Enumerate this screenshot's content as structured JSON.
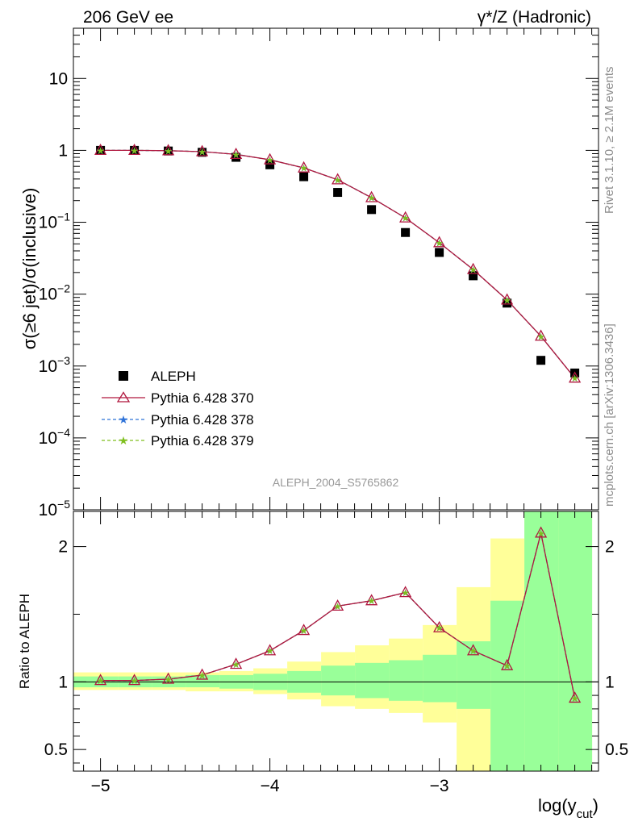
{
  "header": {
    "left": "206 GeV ee",
    "right": "γ*/Z (Hadronic)"
  },
  "side_labels": {
    "rivet": "Rivet 3.1.10, ≥ 2.1M events",
    "mcplots": "mcplots.cern.ch [arXiv:1306.3436]"
  },
  "analysis_id": "ALEPH_2004_S5765862",
  "colors": {
    "data": "#000000",
    "p370": "#b0173e",
    "p378": "#2f73d8",
    "p379": "#7fbf1f",
    "band_yellow": "#ffff99",
    "band_green": "#99ff99"
  },
  "chart_data": [
    {
      "type": "line",
      "panel": "main",
      "ylabel": "σ(≥6 jet)/σ(inclusive)",
      "xlabel": "log(y_cut)",
      "yscale": "log",
      "ylim": [
        1e-05,
        50
      ],
      "xlim": [
        -5.16,
        -2.06
      ],
      "ytick_labels": [
        "10",
        "1",
        "10^-1",
        "10^-2",
        "10^-3",
        "10^-4",
        "10^-5"
      ],
      "x": [
        -5.0,
        -4.8,
        -4.6,
        -4.4,
        -4.2,
        -4.0,
        -3.8,
        -3.6,
        -3.4,
        -3.2,
        -3.0,
        -2.8,
        -2.6,
        -2.4,
        -2.2
      ],
      "series": [
        {
          "name": "ALEPH",
          "values": [
            1.0,
            1.0,
            0.98,
            0.94,
            0.8,
            0.63,
            0.43,
            0.26,
            0.15,
            0.072,
            0.038,
            0.018,
            0.0075,
            0.0012,
            0.0008
          ]
        },
        {
          "name": "Pythia 6.428 370",
          "values": [
            1.0,
            1.0,
            0.99,
            0.96,
            0.88,
            0.74,
            0.57,
            0.39,
            0.22,
            0.115,
            0.052,
            0.022,
            0.0083,
            0.0026,
            0.00068
          ]
        },
        {
          "name": "Pythia 6.428 378",
          "values": [
            1.0,
            1.0,
            0.99,
            0.96,
            0.88,
            0.74,
            0.57,
            0.39,
            0.22,
            0.115,
            0.052,
            0.022,
            0.0083,
            0.0026,
            0.00068
          ]
        },
        {
          "name": "Pythia 6.428 379",
          "values": [
            1.0,
            1.0,
            0.99,
            0.96,
            0.88,
            0.74,
            0.57,
            0.39,
            0.22,
            0.115,
            0.052,
            0.022,
            0.0083,
            0.0026,
            0.00068
          ]
        }
      ],
      "legend_position": "lower-left"
    },
    {
      "type": "line",
      "panel": "ratio",
      "ylabel": "Ratio to ALEPH",
      "xlabel": "log(y_cut)",
      "ylim": [
        0.34,
        2.26
      ],
      "xlim": [
        -5.16,
        -2.06
      ],
      "xtick_labels": [
        "−5",
        "−4",
        "−3"
      ],
      "ytick_labels": [
        "0.5",
        "1",
        "2"
      ],
      "x": [
        -5.0,
        -4.8,
        -4.6,
        -4.4,
        -4.2,
        -4.0,
        -3.8,
        -3.6,
        -3.4,
        -3.2,
        -3.0,
        -2.8,
        -2.6,
        -2.4,
        -2.2
      ],
      "series": [
        {
          "name": "Pythia 6.428 370",
          "values": [
            1.01,
            1.01,
            1.02,
            1.05,
            1.13,
            1.23,
            1.38,
            1.56,
            1.6,
            1.66,
            1.4,
            1.23,
            1.12,
            2.1,
            0.88
          ]
        },
        {
          "name": "Pythia 6.428 378",
          "values": [
            1.01,
            1.01,
            1.02,
            1.05,
            1.13,
            1.23,
            1.38,
            1.56,
            1.6,
            1.66,
            1.4,
            1.23,
            1.12,
            2.1,
            0.88
          ]
        },
        {
          "name": "Pythia 6.428 379",
          "values": [
            1.01,
            1.01,
            1.02,
            1.05,
            1.13,
            1.23,
            1.38,
            1.56,
            1.6,
            1.66,
            1.4,
            1.23,
            1.12,
            2.1,
            0.88
          ]
        }
      ],
      "band_edges": [
        -5.2,
        -4.9,
        -4.7,
        -4.5,
        -4.3,
        -4.1,
        -3.9,
        -3.7,
        -3.5,
        -3.3,
        -3.1,
        -2.9,
        -2.7,
        -2.5,
        -2.3,
        -2.1
      ],
      "band_yellow": [
        [
          0.94,
          1.07
        ],
        [
          0.94,
          1.07
        ],
        [
          0.94,
          1.07
        ],
        [
          0.93,
          1.07
        ],
        [
          0.93,
          1.08
        ],
        [
          0.91,
          1.1
        ],
        [
          0.87,
          1.15
        ],
        [
          0.82,
          1.22
        ],
        [
          0.8,
          1.27
        ],
        [
          0.77,
          1.32
        ],
        [
          0.7,
          1.42
        ],
        [
          0.34,
          1.7
        ],
        [
          0.46,
          2.06
        ],
        [
          0.34,
          2.26
        ],
        [
          0.34,
          2.26
        ]
      ],
      "band_green": [
        [
          0.96,
          1.04
        ],
        [
          0.96,
          1.04
        ],
        [
          0.96,
          1.04
        ],
        [
          0.96,
          1.05
        ],
        [
          0.95,
          1.05
        ],
        [
          0.94,
          1.06
        ],
        [
          0.92,
          1.08
        ],
        [
          0.9,
          1.12
        ],
        [
          0.88,
          1.14
        ],
        [
          0.86,
          1.16
        ],
        [
          0.85,
          1.2
        ],
        [
          0.8,
          1.3
        ],
        [
          0.34,
          1.6
        ],
        [
          0.34,
          2.26
        ],
        [
          0.34,
          2.26
        ]
      ]
    }
  ]
}
